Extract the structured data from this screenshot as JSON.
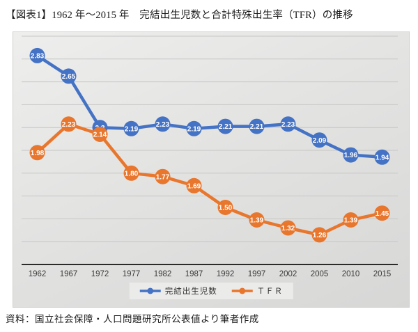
{
  "title": "【図表1】1962 年～2015 年　完結出生児数と合計特殊出生率（TFR）の推移",
  "source": "資料：国立社会保障・人口問題研究所公表値より筆者作成",
  "chart_data": {
    "type": "line",
    "title": "1962年～2015年 完結出生児数と合計特殊出生率（TFR）の推移",
    "categories": [
      "1962",
      "1967",
      "1972",
      "1977",
      "1982",
      "1987",
      "1992",
      "1997",
      "2002",
      "2005",
      "2010",
      "2015"
    ],
    "series": [
      {
        "name": "完結出生児数",
        "color": "#4472C4",
        "values": [
          2.83,
          2.65,
          2.2,
          2.19,
          2.23,
          2.19,
          2.21,
          2.21,
          2.23,
          2.09,
          1.96,
          1.94
        ],
        "labels": [
          "2.83",
          "2.65",
          "2.2",
          "2.19",
          "2.23",
          "2.19",
          "2.21",
          "2.21",
          "2.23",
          "2.09",
          "1.96",
          "1.94"
        ]
      },
      {
        "name": "ＴＦＲ",
        "color": "#E8762C",
        "values": [
          1.98,
          2.23,
          2.14,
          1.8,
          1.77,
          1.69,
          1.5,
          1.39,
          1.32,
          1.26,
          1.39,
          1.45
        ],
        "labels": [
          "1.98",
          "2.23",
          "2.14",
          "1.80",
          "1.77",
          "1.69",
          "1.50",
          "1.39",
          "1.32",
          "1.26",
          "1.39",
          "1.45"
        ]
      }
    ],
    "xlabel": "",
    "ylabel": "",
    "ylim": [
      1.0,
      3.0
    ],
    "grid": true,
    "grid_step": 0.2,
    "grid_color": "#c6c6c5",
    "axis_color": "#2b2b2a",
    "tick_label_color": "#3a3a39",
    "data_label_color": "#ffffff",
    "legend_position": "bottom"
  }
}
